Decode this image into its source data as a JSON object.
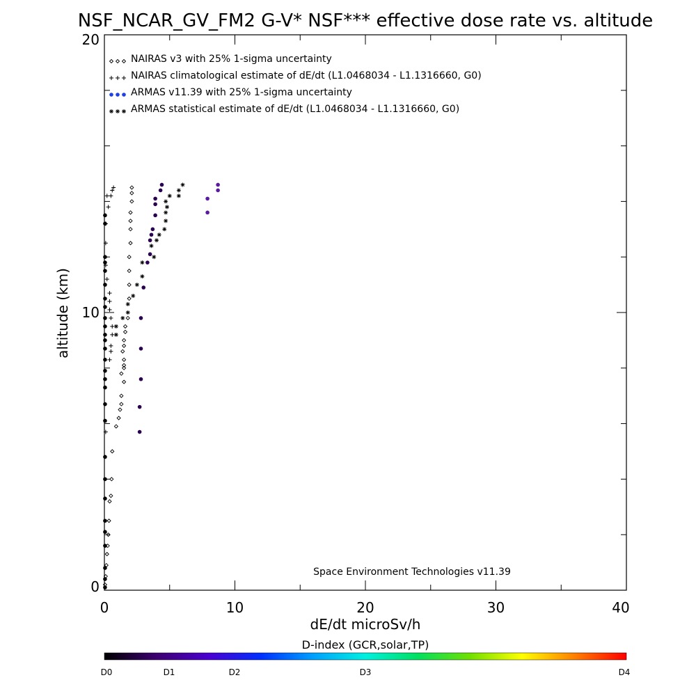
{
  "chart_data": {
    "type": "scatter",
    "title": "NSF_NCAR_GV_FM2 G-V* NSF*** effective dose rate vs. altitude",
    "xlabel": "dE/dt microSv/h",
    "ylabel": "altitude (km)",
    "xlim": [
      0,
      40
    ],
    "ylim": [
      0,
      20
    ],
    "x_ticks": [
      "0",
      "10",
      "20",
      "30",
      "40"
    ],
    "y_ticks": [
      "0",
      "10",
      "20"
    ],
    "annotation": "Space Environment Technologies v11.39",
    "legend_position": "top-left",
    "series": [
      {
        "name": "NAIRAS v3 with 25% 1-sigma uncertainty",
        "marker": "diamond",
        "color": "#000000",
        "points": [
          [
            0.05,
            0.2
          ],
          [
            0.1,
            0.5
          ],
          [
            0.15,
            0.9
          ],
          [
            0.2,
            1.3
          ],
          [
            0.25,
            1.6
          ],
          [
            0.3,
            2.0
          ],
          [
            0.35,
            2.5
          ],
          [
            0.4,
            3.2
          ],
          [
            0.5,
            3.4
          ],
          [
            0.55,
            4.0
          ],
          [
            0.6,
            5.0
          ],
          [
            0.9,
            5.9
          ],
          [
            1.1,
            6.2
          ],
          [
            1.2,
            6.5
          ],
          [
            1.3,
            6.7
          ],
          [
            1.3,
            7.0
          ],
          [
            1.5,
            7.5
          ],
          [
            1.3,
            7.8
          ],
          [
            1.5,
            8.0
          ],
          [
            1.5,
            8.1
          ],
          [
            1.5,
            8.3
          ],
          [
            1.4,
            8.6
          ],
          [
            1.5,
            8.8
          ],
          [
            1.5,
            9.0
          ],
          [
            1.6,
            9.3
          ],
          [
            1.6,
            9.5
          ],
          [
            1.8,
            9.8
          ],
          [
            1.9,
            10.5
          ],
          [
            1.9,
            11.0
          ],
          [
            1.9,
            11.5
          ],
          [
            1.9,
            12.0
          ],
          [
            2.0,
            12.5
          ],
          [
            2.0,
            13.0
          ],
          [
            2.0,
            13.3
          ],
          [
            2.0,
            13.6
          ],
          [
            2.1,
            14.0
          ],
          [
            2.1,
            14.3
          ],
          [
            2.1,
            14.5
          ]
        ]
      },
      {
        "name": "NAIRAS climatological estimate of dE/dt (L1.0468034 - L1.1316660, G0)",
        "marker": "plus",
        "color": "#000000",
        "points": [
          [
            0.1,
            5.7
          ],
          [
            0.4,
            8.3
          ],
          [
            0.5,
            8.6
          ],
          [
            0.5,
            8.8
          ],
          [
            0.6,
            9.2
          ],
          [
            0.6,
            9.5
          ],
          [
            0.5,
            9.8
          ],
          [
            0.4,
            10.1
          ],
          [
            0.4,
            10.4
          ],
          [
            0.4,
            10.7
          ],
          [
            0.2,
            11.2
          ],
          [
            0.1,
            11.7
          ],
          [
            0.1,
            12.5
          ],
          [
            0.1,
            13.2
          ],
          [
            0.3,
            13.8
          ],
          [
            0.2,
            14.2
          ],
          [
            0.5,
            14.2
          ],
          [
            0.6,
            14.4
          ],
          [
            0.7,
            14.5
          ]
        ]
      },
      {
        "name": "ARMAS v11.39 with 25% 1-sigma uncertainty",
        "marker": "dot",
        "color": "#2040e0",
        "points": [
          [
            0.05,
            0.1
          ],
          [
            0.05,
            0.4
          ],
          [
            0.05,
            0.8
          ],
          [
            0.05,
            1.6
          ],
          [
            0.05,
            2.1
          ],
          [
            0.05,
            2.5
          ],
          [
            0.05,
            3.3
          ],
          [
            0.05,
            4.0
          ],
          [
            0.05,
            4.8
          ],
          [
            0.05,
            6.1
          ],
          [
            0.05,
            6.7
          ],
          [
            0.05,
            7.3
          ],
          [
            0.05,
            7.6
          ],
          [
            0.05,
            7.9
          ],
          [
            0.05,
            8.3
          ],
          [
            0.05,
            8.7
          ],
          [
            0.05,
            9.0
          ],
          [
            0.05,
            9.2
          ],
          [
            0.05,
            9.5
          ],
          [
            0.05,
            9.8
          ],
          [
            0.05,
            10.2
          ],
          [
            0.05,
            10.5
          ],
          [
            0.05,
            11.0
          ],
          [
            0.05,
            11.5
          ],
          [
            0.05,
            11.8
          ],
          [
            0.05,
            12.0
          ],
          [
            0.05,
            13.2
          ],
          [
            0.05,
            13.5
          ],
          [
            2.7,
            5.7
          ],
          [
            2.7,
            6.6
          ],
          [
            2.8,
            7.6
          ],
          [
            2.8,
            8.7
          ],
          [
            2.8,
            9.8
          ],
          [
            3.0,
            10.9
          ],
          [
            3.3,
            11.8
          ],
          [
            3.5,
            12.1
          ],
          [
            3.5,
            12.6
          ],
          [
            3.6,
            12.8
          ],
          [
            3.7,
            13.0
          ],
          [
            3.9,
            13.5
          ],
          [
            3.9,
            13.9
          ],
          [
            3.9,
            14.1
          ],
          [
            4.3,
            14.4
          ],
          [
            4.4,
            14.6
          ],
          [
            7.9,
            13.6
          ],
          [
            7.9,
            14.1
          ],
          [
            8.7,
            14.4
          ],
          [
            8.7,
            14.6
          ]
        ]
      },
      {
        "name": "ARMAS statistical estimate of dE/dt (L1.0468034 - L1.1316660, G0)",
        "marker": "asterisk",
        "color": "#000000",
        "points": [
          [
            0.9,
            9.2
          ],
          [
            0.9,
            9.5
          ],
          [
            1.4,
            9.8
          ],
          [
            1.8,
            10.0
          ],
          [
            1.8,
            10.3
          ],
          [
            2.2,
            10.6
          ],
          [
            2.5,
            11.0
          ],
          [
            2.9,
            11.3
          ],
          [
            2.9,
            11.8
          ],
          [
            3.8,
            12.0
          ],
          [
            3.6,
            12.4
          ],
          [
            4.0,
            12.6
          ],
          [
            4.2,
            12.8
          ],
          [
            4.6,
            13.0
          ],
          [
            4.7,
            13.3
          ],
          [
            4.7,
            13.6
          ],
          [
            4.8,
            13.8
          ],
          [
            4.7,
            14.0
          ],
          [
            5.0,
            14.2
          ],
          [
            5.7,
            14.2
          ],
          [
            5.7,
            14.4
          ],
          [
            6.0,
            14.6
          ]
        ]
      }
    ]
  },
  "colorbar": {
    "title": "D-index (GCR,solar,TP)",
    "stops": [
      "#000000",
      "#3d0070",
      "#4a00d0",
      "#0030ff",
      "#00a0ff",
      "#00f0e0",
      "#00e060",
      "#70e000",
      "#ffff00",
      "#ff8000",
      "#ff0000"
    ],
    "labels": [
      {
        "text": "D0",
        "value": 0
      },
      {
        "text": "D1",
        "value": 1
      },
      {
        "text": "D2",
        "value": 2
      },
      {
        "text": "D3",
        "value": 3
      },
      {
        "text": "D4",
        "value": 4
      }
    ]
  }
}
